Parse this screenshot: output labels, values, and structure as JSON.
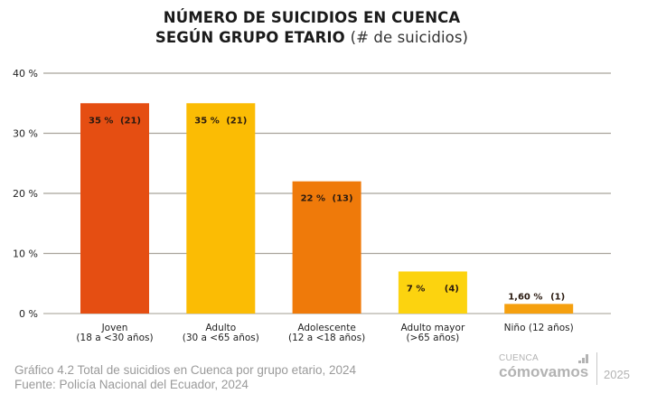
{
  "title": {
    "line1": "NÚMERO DE SUICIDIOS EN CUENCA",
    "line2_bold": "SEGÚN GRUPO ETARIO",
    "line2_light": "(# de suicidios)"
  },
  "chart_data": {
    "type": "bar",
    "title": "NÚMERO DE SUICIDIOS EN CUENCA SEGÚN GRUPO ETARIO (# de suicidios)",
    "xlabel": "",
    "ylabel": "",
    "ylim": [
      0,
      40
    ],
    "yticks": [
      0,
      10,
      20,
      30,
      40
    ],
    "ytick_labels": [
      "0 %",
      "10 %",
      "20 %",
      "30 %",
      "40 %"
    ],
    "grid": true,
    "categories": [
      [
        "Joven",
        "(18 a <30 años)"
      ],
      [
        "Adulto",
        "(30 a <65 años)"
      ],
      [
        "Adolescente",
        "(12 a <18 años)"
      ],
      [
        "Adulto mayor",
        "(>65 años)"
      ],
      [
        "Niño (12 años)"
      ]
    ],
    "values": [
      35,
      35,
      22,
      7,
      1.6
    ],
    "counts": [
      21,
      21,
      13,
      4,
      1
    ],
    "value_labels": [
      "35 %",
      "35 %",
      "22 %",
      "7 %",
      "1,60 %"
    ],
    "count_labels": [
      "(21)",
      "(21)",
      "(13)",
      "(4)",
      "(1)"
    ],
    "colors": [
      "#e54e12",
      "#fbbc04",
      "#ef7a0a",
      "#fcd30f",
      "#f5a00f"
    ]
  },
  "caption": {
    "line1": "Gráfico 4.2 Total de suicidios en Cuenca por grupo etario, 2024",
    "line2": "Fuente: Policía Nacional del Ecuador, 2024"
  },
  "logo": {
    "small": "CUENCA",
    "brand": "cómovamos",
    "year": "2025"
  }
}
